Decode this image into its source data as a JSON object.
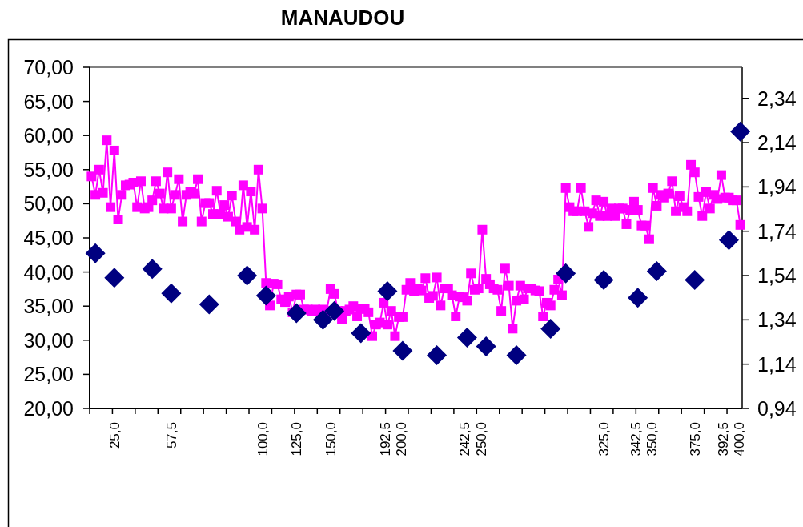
{
  "chart_data": {
    "type": "line",
    "title": "MANAUDOU",
    "categories": [
      null,
      null,
      null,
      null,
      null,
      null,
      "25,0",
      null,
      null,
      null,
      null,
      null,
      null,
      null,
      null,
      null,
      null,
      null,
      null,
      null,
      null,
      "57,5",
      null,
      null,
      null,
      null,
      null,
      null,
      null,
      null,
      null,
      null,
      null,
      null,
      null,
      null,
      null,
      null,
      null,
      null,
      null,
      null,
      null,
      null,
      null,
      "100,0",
      null,
      null,
      null,
      null,
      null,
      null,
      null,
      null,
      "125,0",
      null,
      null,
      null,
      null,
      null,
      null,
      null,
      null,
      "150,0",
      null,
      null,
      null,
      null,
      null,
      null,
      null,
      null,
      null,
      null,
      null,
      null,
      null,
      null,
      "192,5",
      null,
      null,
      "200,0",
      null,
      null,
      null,
      null,
      null,
      null,
      null,
      null,
      null,
      null,
      null,
      null,
      null,
      null,
      null,
      null,
      null,
      "242,5",
      null,
      null,
      "250,0",
      null,
      null,
      null,
      null,
      null,
      null,
      null,
      null,
      null,
      null,
      null,
      null,
      null,
      null,
      null,
      null,
      null,
      null,
      null,
      null,
      null,
      null,
      null,
      null,
      null,
      null,
      null,
      null,
      null,
      null,
      null,
      null,
      "325,0",
      null,
      null,
      null,
      null,
      null,
      null,
      null,
      null,
      "342,5",
      null,
      null,
      "350,0",
      null,
      null,
      null,
      null,
      null,
      null,
      null,
      null,
      null,
      null,
      null,
      "375,0",
      null,
      null,
      null,
      null,
      null,
      null,
      null,
      "392,5",
      null,
      null,
      "400,0",
      null
    ],
    "series": [
      {
        "color": "#ff00ff",
        "marker": "square",
        "values": [
          54.0,
          51.3,
          55.0,
          51.6,
          59.3,
          49.5,
          57.8,
          47.7,
          51.3,
          52.7,
          52.8,
          53.1,
          49.5,
          53.3,
          49.3,
          49.5,
          50.5,
          53.3,
          51.5,
          49.3,
          54.6,
          49.3,
          51.3,
          53.6,
          47.4,
          51.3,
          51.7,
          51.5,
          53.6,
          47.4,
          50.1,
          50.1,
          48.5,
          51.9,
          48.5,
          49.8,
          48.1,
          51.2,
          47.4,
          46.2,
          52.7,
          46.6,
          51.8,
          46.2,
          55.0,
          49.3,
          38.4,
          35.1,
          38.3,
          38.2,
          36.0,
          35.6,
          36.4,
          34.1,
          36.7,
          36.7,
          34.5,
          34.5,
          34.3,
          34.5,
          34.3,
          34.5,
          34.3,
          37.5,
          36.8,
          34.3,
          33.1,
          34.3,
          34.5,
          35.0,
          33.5,
          34.6,
          34.6,
          34.1,
          30.6,
          32.3,
          32.6,
          35.5,
          32.3,
          34.3,
          30.6,
          33.4,
          33.4,
          37.4,
          38.4,
          37.2,
          37.6,
          37.3,
          39.1,
          36.2,
          36.5,
          39.2,
          35.1,
          37.6,
          37.6,
          36.6,
          33.5,
          36.4,
          36.3,
          35.8,
          39.8,
          37.4,
          37.6,
          46.2,
          39.0,
          38.2,
          37.6,
          37.4,
          34.3,
          40.5,
          38.0,
          31.7,
          35.8,
          38.0,
          36.0,
          37.6,
          37.6,
          37.3,
          37.2,
          33.5,
          35.5,
          35.1,
          37.4,
          38.9,
          36.6,
          52.3,
          49.5,
          48.9,
          48.9,
          52.3,
          48.9,
          46.6,
          48.6,
          50.5,
          48.2,
          50.3,
          48.2,
          49.3,
          48.2,
          49.3,
          49.3,
          47.0,
          49.1,
          50.3,
          49.1,
          46.8,
          46.8,
          44.8,
          52.3,
          49.7,
          51.3,
          50.9,
          51.5,
          53.3,
          48.9,
          51.1,
          49.5,
          48.9,
          55.7,
          54.6,
          51.0,
          48.2,
          51.7,
          49.3,
          51.3,
          50.7,
          54.2,
          50.9,
          50.9,
          50.5,
          50.5,
          46.9
        ]
      },
      {
        "type": "scatter",
        "axis": "y2",
        "color": "#000080",
        "marker": "diamond",
        "values": [
          null,
          1.64,
          null,
          null,
          null,
          null,
          1.53,
          null,
          null,
          null,
          null,
          null,
          null,
          null,
          null,
          null,
          1.57,
          null,
          null,
          null,
          null,
          1.46,
          null,
          null,
          null,
          null,
          null,
          null,
          null,
          null,
          null,
          1.41,
          null,
          null,
          null,
          null,
          null,
          null,
          null,
          null,
          null,
          1.54,
          null,
          null,
          null,
          null,
          1.45,
          null,
          null,
          null,
          null,
          null,
          null,
          null,
          1.37,
          null,
          null,
          null,
          null,
          null,
          null,
          1.34,
          null,
          null,
          1.38,
          null,
          null,
          null,
          null,
          null,
          null,
          1.28,
          null,
          null,
          null,
          null,
          null,
          null,
          1.47,
          null,
          null,
          null,
          1.2,
          null,
          null,
          null,
          null,
          null,
          null,
          null,
          null,
          1.18,
          null,
          null,
          null,
          null,
          null,
          null,
          null,
          1.26,
          null,
          null,
          null,
          null,
          1.22,
          null,
          null,
          null,
          null,
          null,
          null,
          null,
          1.18,
          null,
          null,
          null,
          null,
          null,
          null,
          null,
          null,
          1.3,
          null,
          null,
          null,
          1.55,
          null,
          null,
          null,
          null,
          null,
          null,
          null,
          null,
          null,
          1.52,
          null,
          null,
          null,
          null,
          null,
          null,
          null,
          null,
          1.44,
          null,
          null,
          null,
          null,
          1.56,
          null,
          null,
          null,
          null,
          null,
          null,
          null,
          null,
          null,
          1.52,
          null,
          null,
          null,
          null,
          null,
          null,
          null,
          null,
          1.7,
          null,
          null,
          2.19
        ]
      }
    ],
    "ylim": [
      20,
      70
    ],
    "yticks": [
      {
        "value": 20,
        "label": "20,00"
      },
      {
        "value": 25,
        "label": "25,00"
      },
      {
        "value": 30,
        "label": "30,00"
      },
      {
        "value": 35,
        "label": "35,00"
      },
      {
        "value": 40,
        "label": "40,00"
      },
      {
        "value": 45,
        "label": "45,00"
      },
      {
        "value": 50,
        "label": "50,00"
      },
      {
        "value": 55,
        "label": "55,00"
      },
      {
        "value": 60,
        "label": "60,00"
      },
      {
        "value": 65,
        "label": "65,00"
      },
      {
        "value": 70,
        "label": "70,00"
      }
    ],
    "y2lim": [
      0.94,
      2.48
    ],
    "y2ticks": [
      {
        "value": 0.94,
        "label": "0,94"
      },
      {
        "value": 1.14,
        "label": "1,14"
      },
      {
        "value": 1.34,
        "label": "1,34"
      },
      {
        "value": 1.54,
        "label": "1,54"
      },
      {
        "value": 1.74,
        "label": "1,74"
      },
      {
        "value": 1.94,
        "label": "1,94"
      },
      {
        "value": 2.14,
        "label": "2,14"
      },
      {
        "value": 2.34,
        "label": "2,34"
      }
    ]
  }
}
